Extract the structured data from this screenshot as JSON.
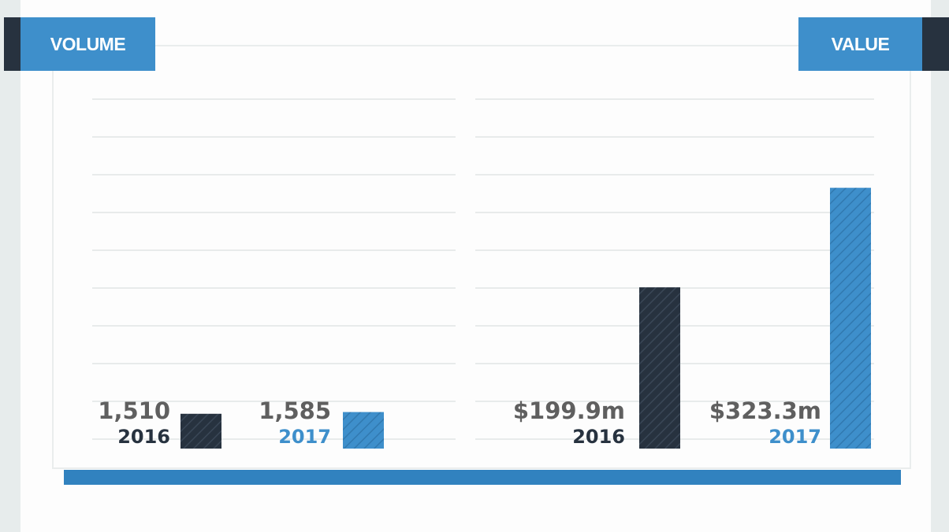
{
  "headers": {
    "left": "VOLUME",
    "right": "VALUE"
  },
  "colors": {
    "dark": "#27323f",
    "blue": "#3e8fcb",
    "label_gray": "#5f5f5f"
  },
  "chart_data": [
    {
      "type": "bar",
      "title": "VOLUME",
      "categories": [
        "2016",
        "2017"
      ],
      "values": [
        1510,
        1585
      ],
      "value_labels": [
        "1,510",
        "1,585"
      ],
      "colors": [
        "#27323f",
        "#3e8fcb"
      ],
      "grid": true,
      "axis_scale": 16800
    },
    {
      "type": "bar",
      "title": "VALUE",
      "categories": [
        "2016",
        "2017"
      ],
      "values": [
        199.9,
        323.3
      ],
      "value_labels": [
        "$199.9m",
        "$323.3m"
      ],
      "unit": "$m",
      "colors": [
        "#27323f",
        "#3e8fcb"
      ],
      "grid": true,
      "axis_scale": 480
    }
  ]
}
